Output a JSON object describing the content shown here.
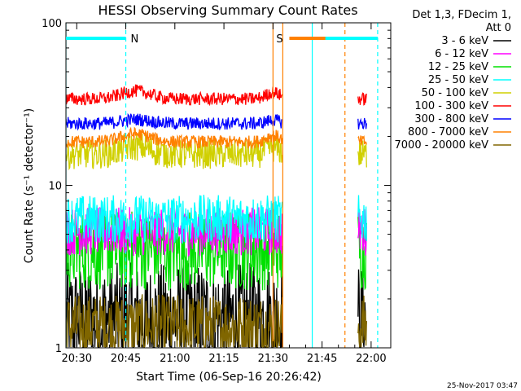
{
  "chart_data": {
    "type": "line",
    "title": "HESSI Observing Summary Count Rates",
    "xlabel": "Start Time (06-Sep-16 20:26:42)",
    "ylabel": "Count Rate (s⁻¹ detector⁻¹)",
    "yscale": "log",
    "ylim": [
      1,
      100
    ],
    "xlim": [
      "20:26:42",
      "22:06:00"
    ],
    "x_ticks": [
      "20:30",
      "20:45",
      "21:00",
      "21:15",
      "21:30",
      "21:45",
      "22:00"
    ],
    "y_ticks": [
      "1",
      "10",
      "100"
    ],
    "grid": false,
    "legend_header": [
      "Det 1,3, FDecim 1,",
      "Att 0"
    ],
    "legend_placement": "right",
    "timestamp": "25-Nov-2017 03:47",
    "data_gaps": [
      [
        "21:33",
        "22:04"
      ]
    ],
    "data_resume": "21:56",
    "series": [
      {
        "name": "3 - 6 keV",
        "color": "#000000",
        "level": 1.5,
        "noise": 0.35,
        "bump": 0
      },
      {
        "name": "6 - 12 keV",
        "color": "#ff00ff",
        "level": 5.2,
        "noise": 0.15,
        "bump": 0
      },
      {
        "name": "12 - 25 keV",
        "color": "#00e000",
        "level": 4.0,
        "noise": 0.25,
        "bump": 0
      },
      {
        "name": "25 - 50 keV",
        "color": "#00ffff",
        "level": 6.2,
        "noise": 0.15,
        "bump": 0
      },
      {
        "name": "50 - 100 keV",
        "color": "#d0d000",
        "level": 15.5,
        "noise": 0.09,
        "bump": 0.12
      },
      {
        "name": "100 - 300 keV",
        "color": "#ff0000",
        "level": 34,
        "noise": 0.04,
        "bump": 0.12
      },
      {
        "name": "300 - 800 keV",
        "color": "#0000ff",
        "level": 24,
        "noise": 0.04,
        "bump": 0.06
      },
      {
        "name": "800 - 7000 keV",
        "color": "#ff8000",
        "level": 18.5,
        "noise": 0.04,
        "bump": 0.12
      },
      {
        "name": "7000 - 20000 keV",
        "color": "#806600",
        "level": 1.35,
        "noise": 0.2,
        "bump": 0
      }
    ],
    "annotations": [
      {
        "label": "N",
        "color": "#00ffff",
        "bar": [
          "20:26:42",
          "20:45"
        ],
        "at": "20:45"
      },
      {
        "label": "S",
        "color": "#ff8000",
        "bar": [
          "21:35",
          "21:51"
        ],
        "at": "21:33"
      }
    ],
    "markers": [
      {
        "time": "20:45",
        "color": "#00ffff",
        "style": "dashed"
      },
      {
        "time": "21:30",
        "color": "#ff8000",
        "style": "solid"
      },
      {
        "time": "21:33",
        "color": "#ff8000",
        "style": "solid"
      },
      {
        "time": "21:42",
        "color": "#00ffff",
        "style": "solid"
      },
      {
        "time": "21:52",
        "color": "#ff8000",
        "style": "dashed"
      },
      {
        "time": "22:02",
        "color": "#00ffff",
        "style": "dashed"
      },
      {
        "time": "20:26:42",
        "color": "#00ffff",
        "style": "solid"
      }
    ]
  }
}
